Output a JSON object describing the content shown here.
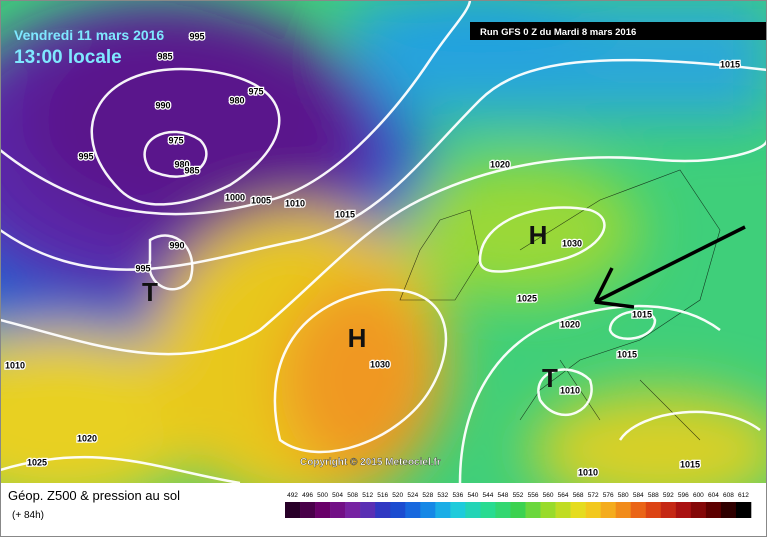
{
  "header": {
    "date": "Vendredi 11 mars 2016",
    "time": "13:00 locale",
    "run": "Run GFS 0 Z du Mardi 8 mars 2016"
  },
  "footer": {
    "title": "Géop. Z500 & pression au sol",
    "lead": "(+ 84h)",
    "copyright": "Copyright © 2015 Meteociel.fr"
  },
  "isobar_labels": [
    "995",
    "985",
    "975",
    "980",
    "990",
    "975",
    "995",
    "980",
    "985",
    "1000",
    "1005",
    "1010",
    "1015",
    "990",
    "995",
    "1020",
    "1030",
    "1025",
    "1020",
    "1015",
    "1015",
    "1010",
    "1030",
    "1010",
    "1020",
    "1025",
    "1010",
    "1015",
    "1015"
  ],
  "pressure_centers": [
    "H",
    "H",
    "T",
    "T"
  ],
  "colorbar": [
    492,
    496,
    500,
    504,
    508,
    512,
    516,
    520,
    524,
    528,
    532,
    536,
    540,
    544,
    548,
    552,
    556,
    560,
    564,
    568,
    572,
    576,
    580,
    584,
    588,
    592,
    596,
    600,
    604,
    608,
    612
  ]
}
